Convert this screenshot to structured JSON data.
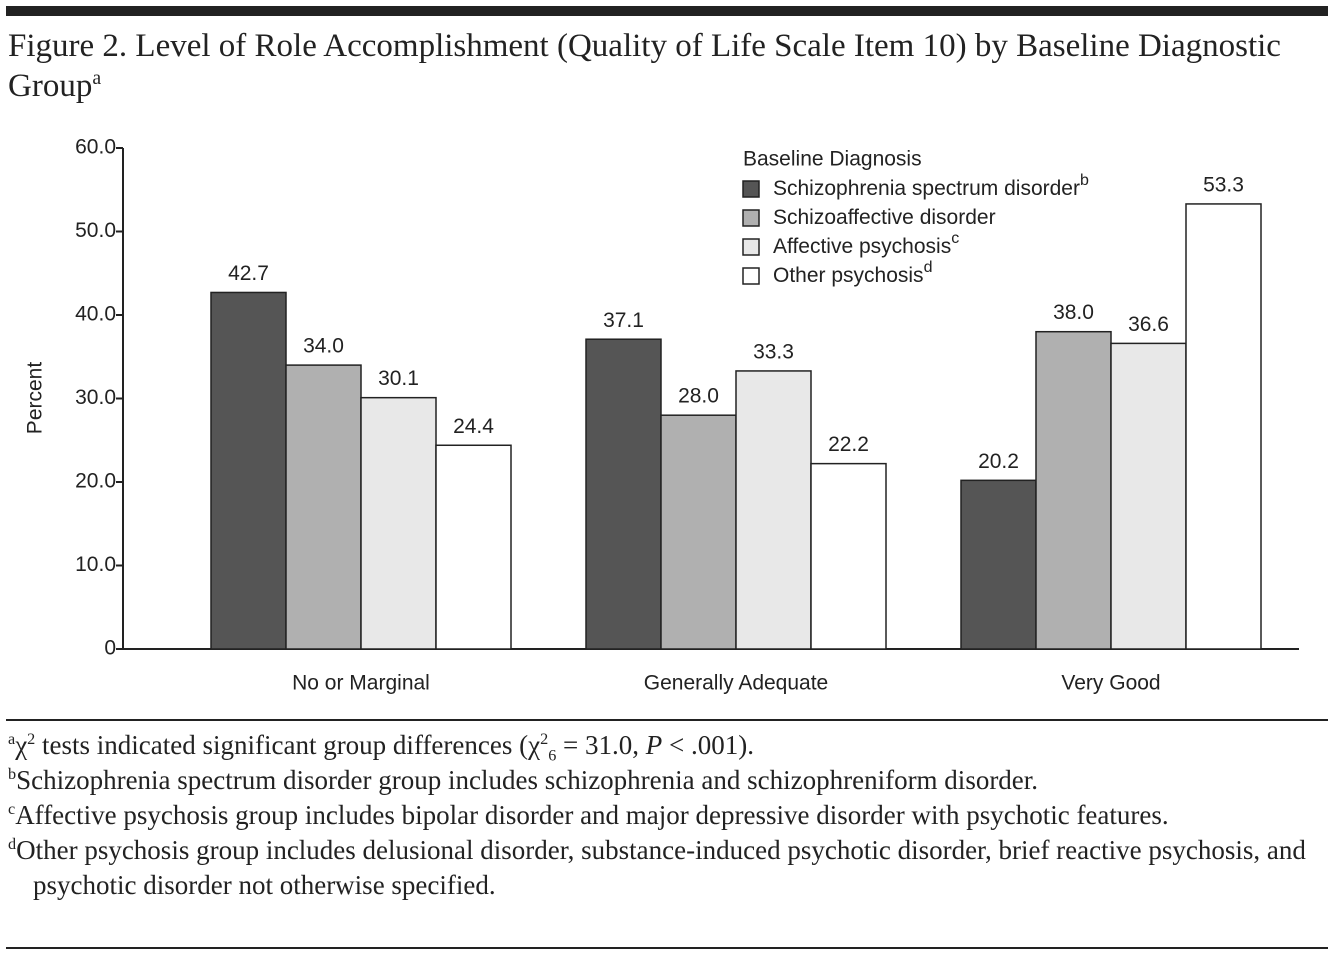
{
  "chart_data": {
    "type": "bar",
    "title": "Figure 2. Level of Role Accomplishment (Quality of Life Scale Item 10) by Baseline Diagnostic Group",
    "title_note": "a",
    "y_label": "Percent",
    "legend_title": "Baseline Diagnosis",
    "categories": [
      "No or Marginal",
      "Generally Adequate",
      "Very Good"
    ],
    "series": [
      {
        "name": "Schizophrenia spectrum disorder",
        "note": "b",
        "color": "#555555",
        "values": [
          42.7,
          37.1,
          20.2
        ],
        "value_labels": [
          "42.7",
          "37.1",
          "20.2"
        ]
      },
      {
        "name": "Schizoaffective disorder",
        "color": "#b0b0b0",
        "values": [
          34.0,
          28.0,
          38.0
        ],
        "value_labels": [
          "34.0",
          "28.0",
          "38.0"
        ]
      },
      {
        "name": "Affective psychosis",
        "note": "c",
        "color": "#e8e8e8",
        "values": [
          30.1,
          33.3,
          36.6
        ],
        "value_labels": [
          "30.1",
          "33.3",
          "36.6"
        ]
      },
      {
        "name": "Other psychosis",
        "note": "d",
        "color": "#ffffff",
        "values": [
          24.4,
          22.2,
          53.3
        ],
        "value_labels": [
          "24.4",
          "22.2",
          "53.3"
        ]
      }
    ],
    "ylim": [
      0,
      60
    ],
    "yticks": [
      {
        "value": 0,
        "label": "0"
      },
      {
        "value": 10,
        "label": "10.0"
      },
      {
        "value": 20,
        "label": "20.0"
      },
      {
        "value": 30,
        "label": "30.0"
      },
      {
        "value": 40,
        "label": "40.0"
      },
      {
        "value": 50,
        "label": "50.0"
      },
      {
        "value": 60,
        "label": "60.0"
      }
    ],
    "grid": false
  },
  "footnotes": [
    {
      "mark": "a",
      "parts": [
        "χ",
        "2",
        " tests indicated significant group differences (χ",
        "2",
        "6",
        " = 31.0, ",
        "P",
        " < .001)."
      ]
    },
    {
      "mark": "b",
      "text": "Schizophrenia spectrum disorder group includes schizophrenia and schizophreniform disorder."
    },
    {
      "mark": "c",
      "text": "Affective psychosis group includes bipolar disorder and major depressive disorder with psychotic features."
    },
    {
      "mark": "d",
      "text": "Other psychosis group includes delusional disorder, substance-induced psychotic disorder, brief reactive psychosis, and psychotic disorder not otherwise specified."
    }
  ]
}
